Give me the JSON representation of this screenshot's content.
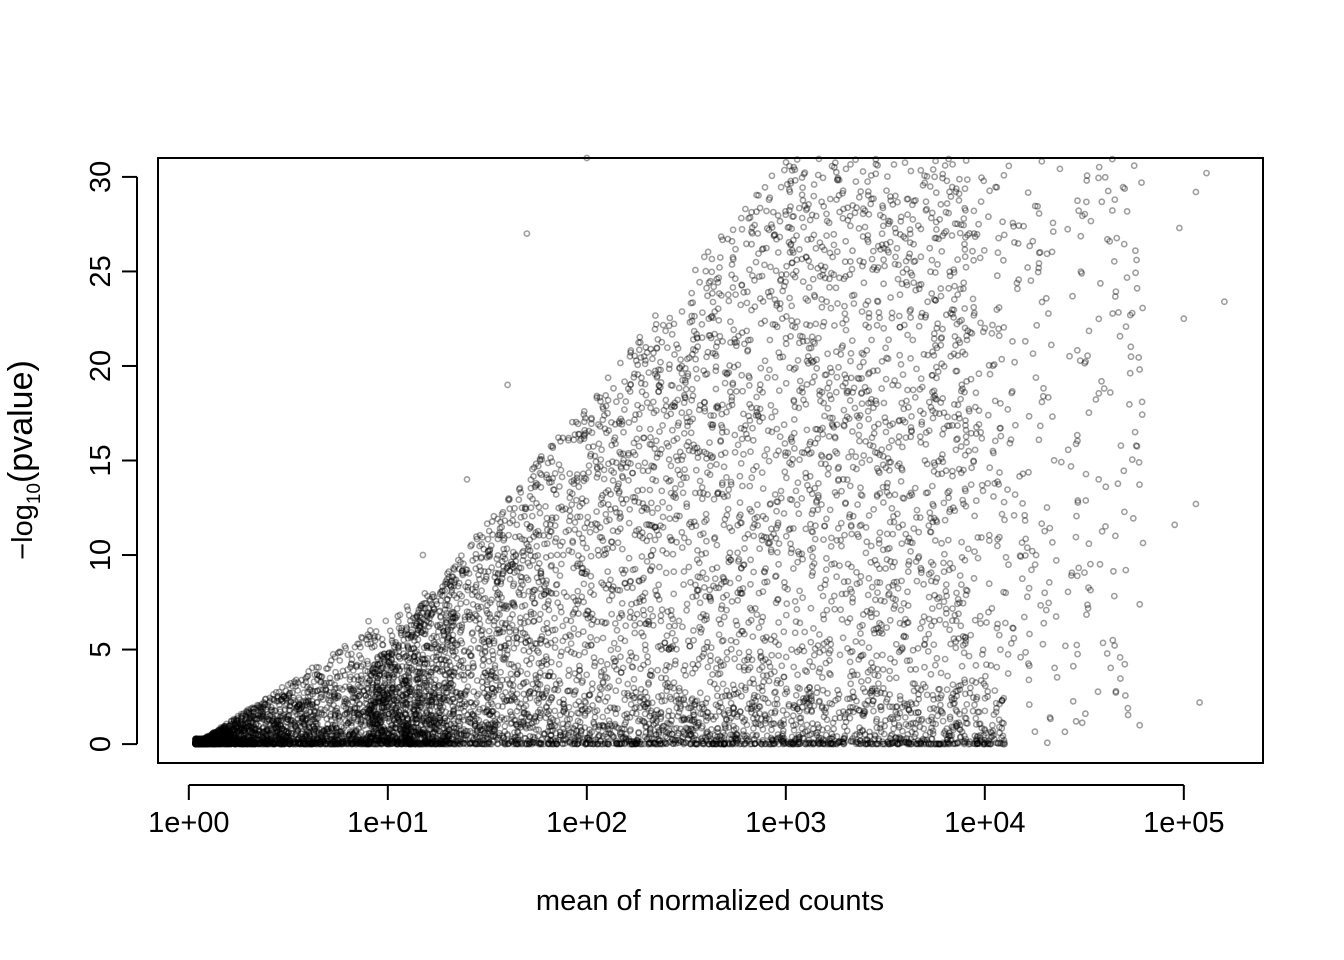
{
  "chart_data": {
    "type": "scatter",
    "title": "",
    "xlabel": "mean of normalized counts",
    "ylabel": "−log10(pvalue)",
    "ylabel_parts": {
      "prefix": "−log",
      "subscript": "10",
      "body": "(pvalue)"
    },
    "x_scale": "log10",
    "xlim": [
      0.7,
      250000
    ],
    "ylim": [
      -1,
      31
    ],
    "x_ticks": [
      1,
      10,
      100,
      1000,
      10000,
      100000
    ],
    "x_tick_labels": [
      "1e+00",
      "1e+01",
      "1e+02",
      "1e+03",
      "1e+04",
      "1e+05"
    ],
    "y_ticks": [
      0,
      5,
      10,
      15,
      20,
      25,
      30
    ],
    "y_tick_labels": [
      "0",
      "5",
      "10",
      "15",
      "20",
      "25",
      "30"
    ],
    "marker": "open-circle",
    "point_color": "#000000",
    "point_alpha": 0.38,
    "grid": false,
    "legend": "none",
    "point_distribution": {
      "description": "approximate density of points; dense near y=0 and low counts, fanning upward with mean count",
      "sample_points": [
        [
          1.1,
          0.0
        ],
        [
          1.5,
          0.3
        ],
        [
          2.0,
          0.8
        ],
        [
          3.0,
          2.5
        ],
        [
          5.0,
          4.0
        ],
        [
          8.0,
          6.5
        ],
        [
          15.0,
          10.0
        ],
        [
          25.0,
          14.0
        ],
        [
          40.0,
          19.0
        ],
        [
          50.0,
          27.0
        ],
        [
          100.0,
          31.0
        ],
        [
          300.0,
          20.0
        ],
        [
          1000.0,
          28.0
        ],
        [
          5000.0,
          15.0
        ],
        [
          10000.0,
          22.0
        ],
        [
          20000.0,
          8.0
        ],
        [
          45000.0,
          28.8
        ],
        [
          60000.0,
          1.0
        ],
        [
          95000.0,
          27.3
        ],
        [
          115000.0,
          29.2
        ],
        [
          130000.0,
          30.2
        ],
        [
          160000.0,
          23.4
        ],
        [
          100000.0,
          22.5
        ],
        [
          115000.0,
          12.7
        ],
        [
          90000.0,
          11.6
        ],
        [
          120000.0,
          2.2
        ]
      ]
    }
  }
}
